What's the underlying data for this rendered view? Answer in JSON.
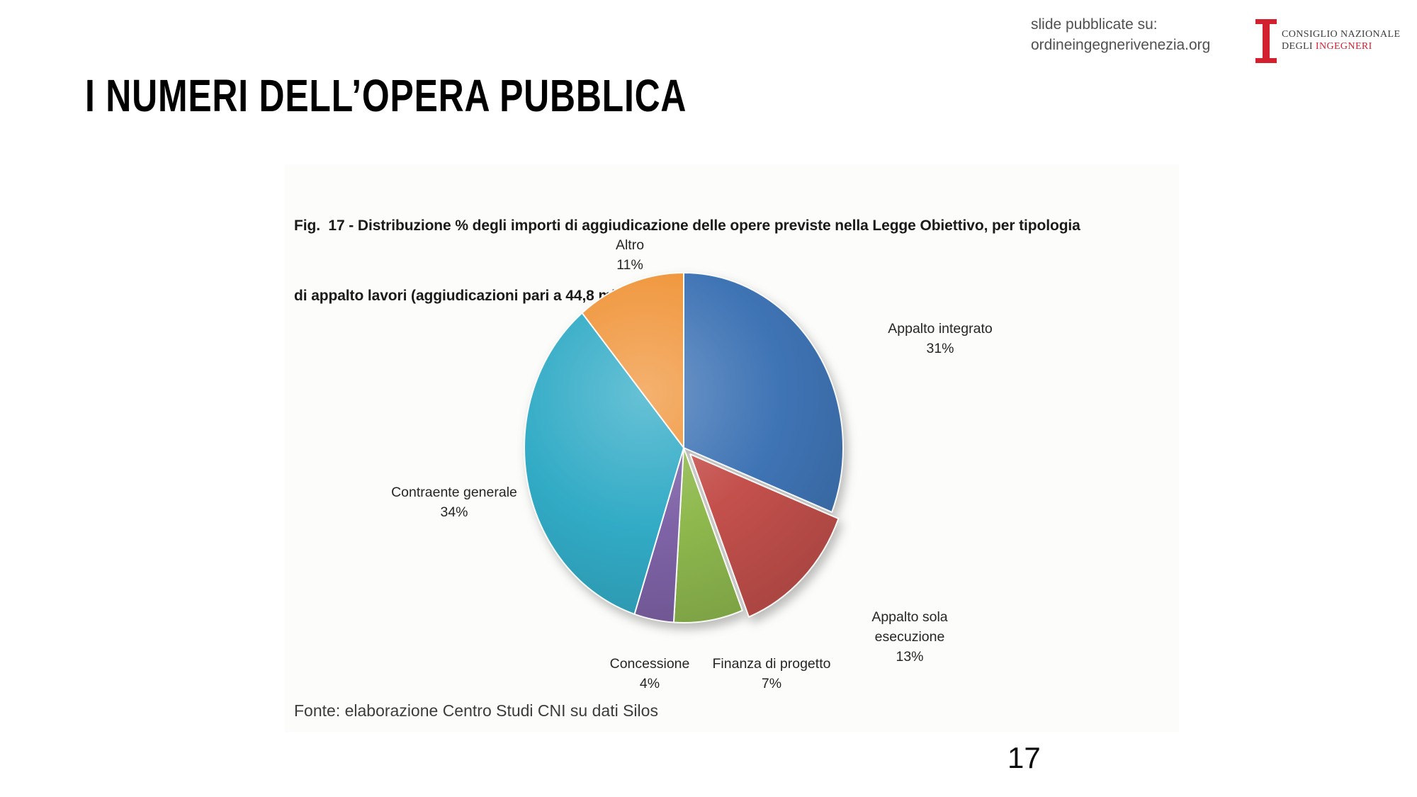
{
  "slide": {
    "title": "I NUMERI DELL’OPERA PUBBLICA",
    "page_number": "17"
  },
  "header": {
    "published_note_line1": "slide pubblicate su:",
    "published_note_line2": "ordineingegnerivenezia.org",
    "logo": {
      "line1": "CONSIGLIO NAZIONALE",
      "line2_prefix": "DEGLI ",
      "line2_accent": "INGEGNERI",
      "accent_color": "#d2202f",
      "text_color": "#3b3b3d"
    }
  },
  "figure": {
    "caption_line1": "Fig.  17 - Distribuzione % degli importi di aggiudicazione delle opere previste nella Legge Obiettivo, per tipologia",
    "caption_line2": "di appalto lavori (aggiudicazioni pari a 44,8 miliardi di euro)",
    "source": "Fonte: elaborazione Centro Studi CNI su dati Silos"
  },
  "chart_data": {
    "type": "pie",
    "title": "Distribuzione % degli importi di aggiudicazione delle opere previste nella Legge Obiettivo, per tipologia di appalto lavori",
    "subtitle": "aggiudicazioni pari a 44,8 miliardi di euro",
    "start_angle_deg": 0,
    "direction": "clockwise",
    "legend": "none",
    "labels_position": "outside with percentages",
    "slices": [
      {
        "label": "Appalto integrato",
        "value": 31,
        "unit": "%",
        "color": "#3f74b5",
        "exploded": false
      },
      {
        "label": "Appalto sola esecuzione",
        "value": 13,
        "unit": "%",
        "color": "#c4504c",
        "exploded": true
      },
      {
        "label": "Finanza di progetto",
        "value": 7,
        "unit": "%",
        "color": "#8fb94e",
        "exploded": false
      },
      {
        "label": "Concessione",
        "value": 4,
        "unit": "%",
        "color": "#7f63a7",
        "exploded": false
      },
      {
        "label": "Contraente generale",
        "value": 34,
        "unit": "%",
        "color": "#32abc6",
        "exploded": false
      },
      {
        "label": "Altro",
        "value": 11,
        "unit": "%",
        "color": "#f0963c",
        "exploded": false
      }
    ]
  }
}
